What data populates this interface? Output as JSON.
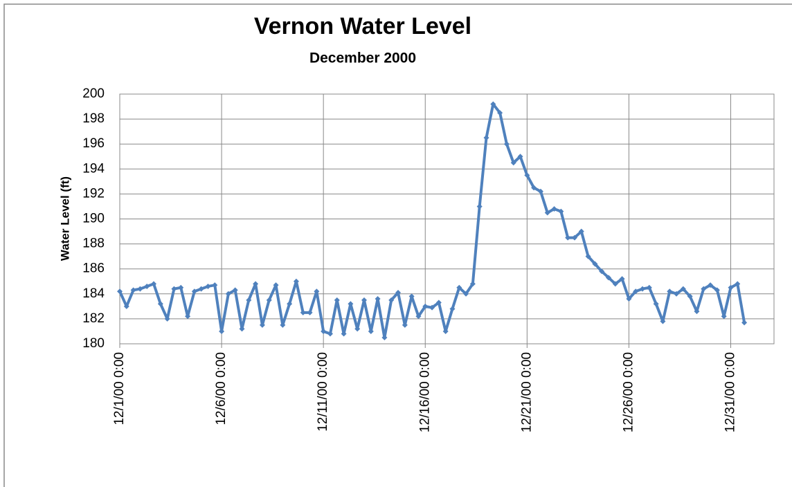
{
  "chart_data": {
    "type": "line",
    "title": "Vernon Water Level",
    "subtitle": "December 2000",
    "y_label": "Water Level (ft)",
    "x": [
      "12/1/00 0:00",
      "12/1/00 8:00",
      "12/1/00 16:00",
      "12/2/00 0:00",
      "12/2/00 8:00",
      "12/2/00 16:00",
      "12/3/00 0:00",
      "12/3/00 8:00",
      "12/3/00 16:00",
      "12/4/00 0:00",
      "12/4/00 8:00",
      "12/4/00 16:00",
      "12/5/00 0:00",
      "12/5/00 8:00",
      "12/5/00 16:00",
      "12/6/00 0:00",
      "12/6/00 8:00",
      "12/6/00 16:00",
      "12/7/00 0:00",
      "12/7/00 8:00",
      "12/7/00 16:00",
      "12/8/00 0:00",
      "12/8/00 8:00",
      "12/8/00 16:00",
      "12/9/00 0:00",
      "12/9/00 8:00",
      "12/9/00 16:00",
      "12/10/00 0:00",
      "12/10/00 8:00",
      "12/10/00 16:00",
      "12/11/00 0:00",
      "12/11/00 8:00",
      "12/11/00 16:00",
      "12/12/00 0:00",
      "12/12/00 8:00",
      "12/12/00 16:00",
      "12/13/00 0:00",
      "12/13/00 8:00",
      "12/13/00 16:00",
      "12/14/00 0:00",
      "12/14/00 8:00",
      "12/14/00 16:00",
      "12/15/00 0:00",
      "12/15/00 8:00",
      "12/15/00 16:00",
      "12/16/00 0:00",
      "12/16/00 8:00",
      "12/16/00 16:00",
      "12/17/00 0:00",
      "12/17/00 8:00",
      "12/17/00 16:00",
      "12/18/00 0:00",
      "12/18/00 8:00",
      "12/18/00 16:00",
      "12/19/00 0:00",
      "12/19/00 8:00",
      "12/19/00 16:00",
      "12/20/00 0:00",
      "12/20/00 8:00",
      "12/20/00 16:00",
      "12/21/00 0:00",
      "12/21/00 8:00",
      "12/21/00 16:00",
      "12/22/00 0:00",
      "12/22/00 8:00",
      "12/22/00 16:00",
      "12/23/00 0:00",
      "12/23/00 8:00",
      "12/23/00 16:00",
      "12/24/00 0:00",
      "12/24/00 8:00",
      "12/24/00 16:00",
      "12/25/00 0:00",
      "12/25/00 8:00",
      "12/25/00 16:00",
      "12/26/00 0:00",
      "12/26/00 8:00",
      "12/26/00 16:00",
      "12/27/00 0:00",
      "12/27/00 8:00",
      "12/27/00 16:00",
      "12/28/00 0:00",
      "12/28/00 8:00",
      "12/28/00 16:00",
      "12/29/00 0:00",
      "12/29/00 8:00",
      "12/29/00 16:00",
      "12/30/00 0:00",
      "12/30/00 8:00",
      "12/30/00 16:00",
      "12/31/00 0:00",
      "12/31/00 8:00",
      "12/31/00 16:00"
    ],
    "series": [
      {
        "name": "Water Level",
        "color": "#4f81bd",
        "values": [
          184.2,
          183.0,
          184.3,
          184.4,
          184.6,
          184.8,
          183.2,
          182.0,
          184.4,
          184.5,
          182.2,
          184.2,
          184.4,
          184.6,
          184.7,
          181.0,
          184.0,
          184.3,
          181.2,
          183.5,
          184.8,
          181.5,
          183.5,
          184.7,
          181.5,
          183.2,
          185.0,
          182.5,
          182.5,
          184.2,
          181.0,
          180.8,
          183.5,
          180.8,
          183.2,
          181.2,
          183.5,
          181.0,
          183.6,
          180.5,
          183.5,
          184.1,
          181.5,
          183.8,
          182.2,
          183.0,
          182.9,
          183.3,
          181.0,
          182.8,
          184.5,
          184.0,
          184.8,
          191.0,
          196.5,
          199.2,
          198.5,
          196.0,
          194.5,
          195.0,
          193.5,
          192.5,
          192.2,
          190.5,
          190.8,
          190.6,
          188.5,
          188.5,
          189.0,
          187.0,
          186.4,
          185.8,
          185.3,
          184.8,
          185.2,
          183.6,
          184.2,
          184.4,
          184.5,
          183.2,
          181.8,
          184.2,
          184.0,
          184.4,
          183.8,
          182.6,
          184.4,
          184.7,
          184.3,
          182.2,
          184.5,
          184.8,
          181.7
        ]
      }
    ],
    "xlim": [
      "12/1/00 0:00",
      "1/2/01 3:00"
    ],
    "xticks": [
      "12/1/00 0:00",
      "12/6/00 0:00",
      "12/11/00 0:00",
      "12/16/00 0:00",
      "12/21/00 0:00",
      "12/26/00 0:00",
      "12/31/00 0:00"
    ],
    "ylim": [
      180,
      200
    ],
    "yticks": [
      180,
      182,
      184,
      186,
      188,
      190,
      192,
      194,
      196,
      198,
      200
    ],
    "grid": true
  }
}
